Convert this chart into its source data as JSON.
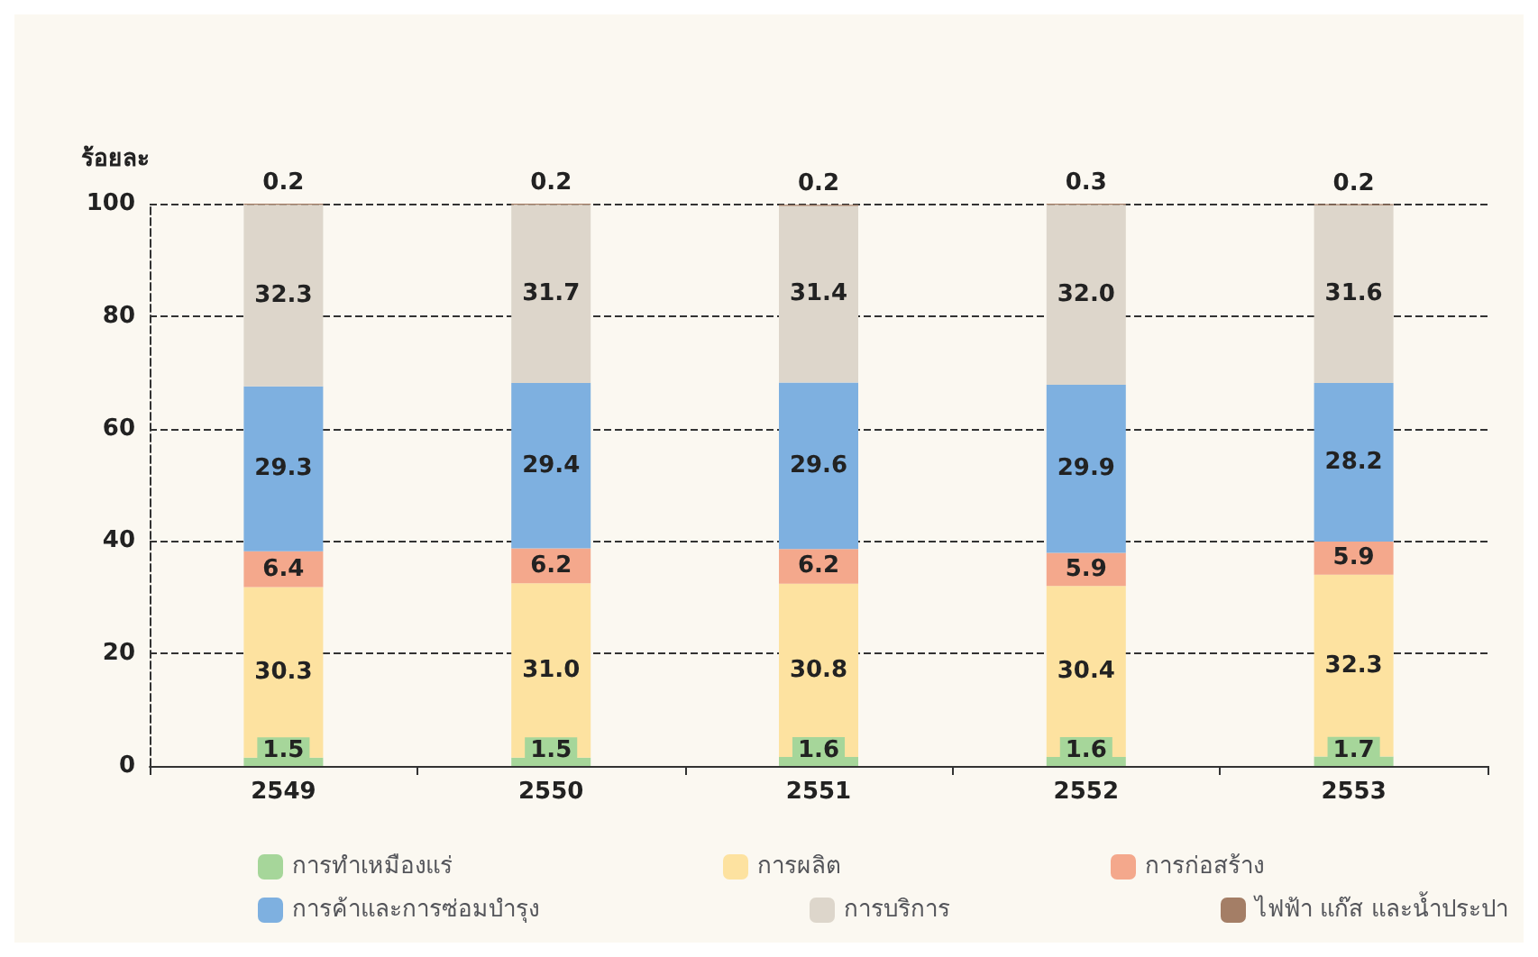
{
  "chart_data": {
    "type": "bar",
    "stacked": true,
    "ylabel": "ร้อยละ",
    "categories": [
      "2549",
      "2550",
      "2551",
      "2552",
      "2553"
    ],
    "series": [
      {
        "name": "การทำเหมืองแร่",
        "color": "#a6d69a",
        "values": [
          1.5,
          1.5,
          1.6,
          1.6,
          1.7
        ],
        "value_labels": [
          "1.5",
          "1.5",
          "1.6",
          "1.6",
          "1.7"
        ]
      },
      {
        "name": "การผลิต",
        "color": "#fde2a0",
        "values": [
          30.3,
          31.0,
          30.8,
          30.4,
          32.3
        ],
        "value_labels": [
          "30.3",
          "31.0",
          "30.8",
          "30.4",
          "32.3"
        ]
      },
      {
        "name": "การก่อสร้าง",
        "color": "#f4a88c",
        "values": [
          6.4,
          6.2,
          6.2,
          5.9,
          5.9
        ],
        "value_labels": [
          "6.4",
          "6.2",
          "6.2",
          "5.9",
          "5.9"
        ]
      },
      {
        "name": "การค้าและการซ่อมบำรุง",
        "color": "#7eb0e0",
        "values": [
          29.3,
          29.4,
          29.6,
          29.9,
          28.2
        ],
        "value_labels": [
          "29.3",
          "29.4",
          "29.6",
          "29.9",
          "28.2"
        ]
      },
      {
        "name": "การบริการ",
        "color": "#ddd6cb",
        "values": [
          32.3,
          31.7,
          31.4,
          32.0,
          31.6
        ],
        "value_labels": [
          "32.3",
          "31.7",
          "31.4",
          "32.0",
          "31.6"
        ]
      },
      {
        "name": "ไฟฟ้า แก๊ส และน้ำประปา",
        "color": "#a47e66",
        "values": [
          0.2,
          0.2,
          0.2,
          0.3,
          0.2
        ],
        "value_labels": [
          "0.2",
          "0.2",
          "0.2",
          "0.3",
          "0.2"
        ]
      }
    ],
    "ylim": [
      0,
      100
    ],
    "yticks": [
      0,
      20,
      40,
      60,
      80,
      100
    ],
    "grid": "y",
    "legend": "bottom"
  }
}
